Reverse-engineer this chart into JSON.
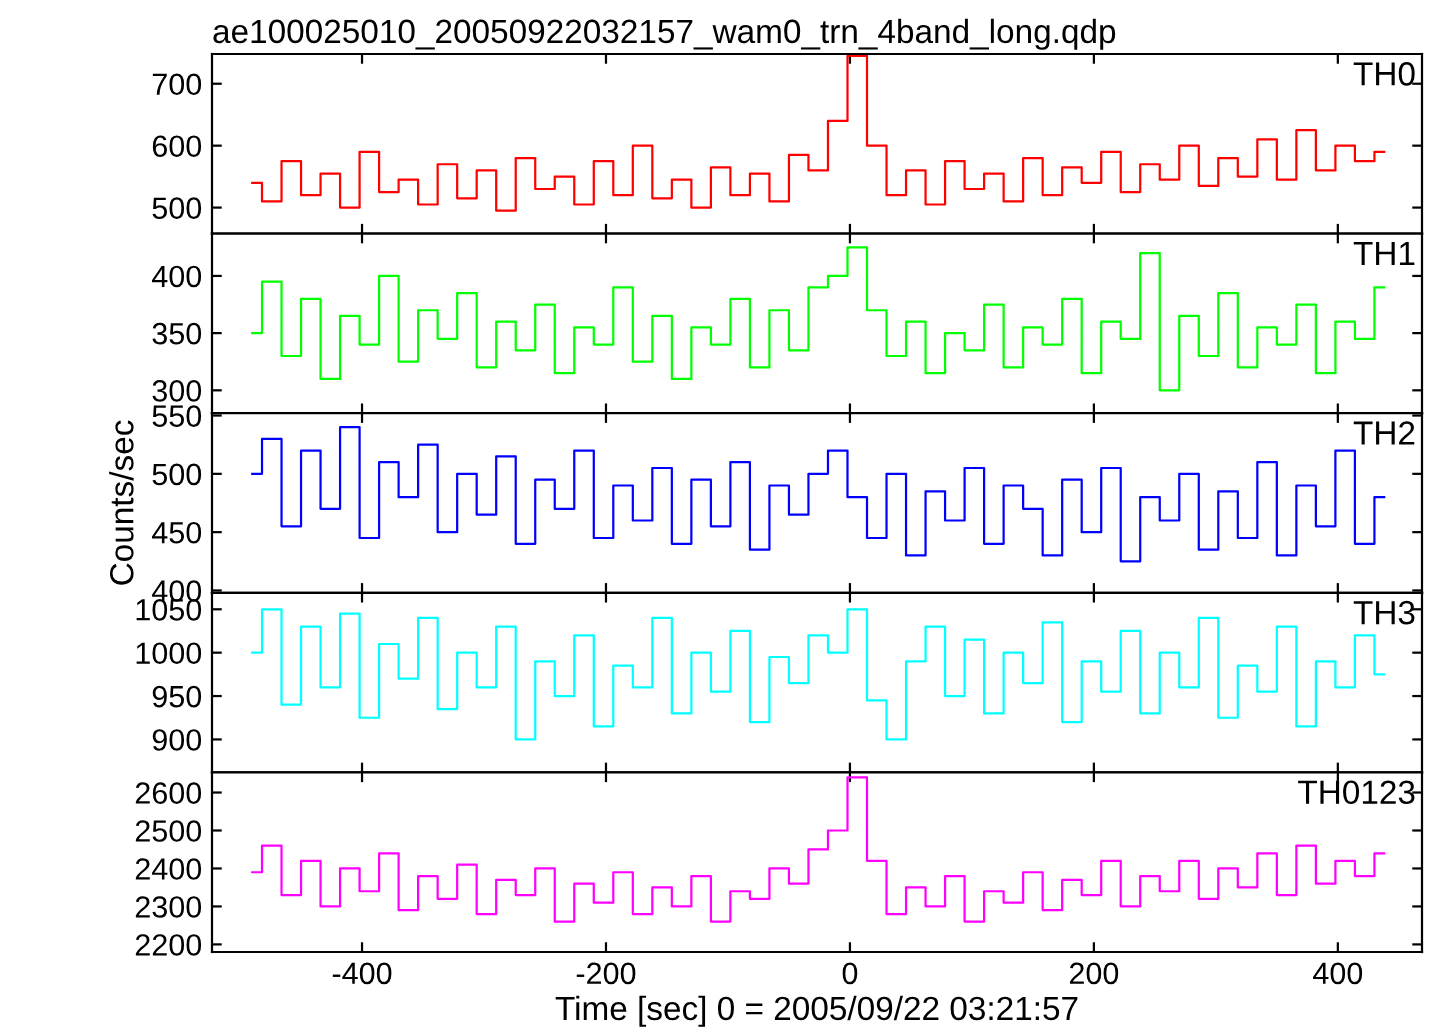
{
  "chart_data": [
    {
      "type": "step",
      "title": "ae100025010_20050922032157_wam0_trn_4band_long.qdp",
      "xlim": [
        -523,
        469
      ],
      "xticks": [
        -400,
        -200,
        0,
        200,
        400
      ],
      "ylim": [
        458,
        748
      ],
      "yticks": [
        500,
        600,
        700
      ],
      "tick_labels": "y",
      "x": [
        -490,
        -474,
        -458,
        -442,
        -426,
        -410,
        -394,
        -378,
        -362,
        -346,
        -330,
        -314,
        -298,
        -282,
        -266,
        -250,
        -234,
        -218,
        -202,
        -186,
        -170,
        -154,
        -138,
        -122,
        -106,
        -90,
        -74,
        -58,
        -42,
        -26,
        -10,
        6,
        22,
        38,
        54,
        70,
        86,
        102,
        118,
        134,
        150,
        166,
        182,
        198,
        214,
        230,
        246,
        262,
        278,
        294,
        310,
        326,
        342,
        358,
        374,
        390,
        406,
        422,
        438
      ],
      "series": [
        {
          "name": "TH0",
          "color": "#ff0000",
          "values": [
            540,
            510,
            575,
            520,
            555,
            500,
            590,
            525,
            545,
            505,
            570,
            515,
            560,
            495,
            580,
            530,
            550,
            505,
            575,
            520,
            600,
            515,
            545,
            500,
            565,
            520,
            555,
            510,
            585,
            560,
            640,
            745,
            600,
            520,
            560,
            505,
            575,
            530,
            555,
            510,
            580,
            520,
            565,
            540,
            590,
            525,
            570,
            545,
            600,
            535,
            580,
            550,
            610,
            545,
            625,
            560,
            600,
            575,
            590
          ]
        }
      ]
    },
    {
      "type": "step",
      "xlim": [
        -523,
        469
      ],
      "xticks": [
        -400,
        -200,
        0,
        200,
        400
      ],
      "ylim": [
        280,
        437
      ],
      "yticks": [
        300,
        350,
        400
      ],
      "tick_labels": "y",
      "x": [
        -490,
        -474,
        -458,
        -442,
        -426,
        -410,
        -394,
        -378,
        -362,
        -346,
        -330,
        -314,
        -298,
        -282,
        -266,
        -250,
        -234,
        -218,
        -202,
        -186,
        -170,
        -154,
        -138,
        -122,
        -106,
        -90,
        -74,
        -58,
        -42,
        -26,
        -10,
        6,
        22,
        38,
        54,
        70,
        86,
        102,
        118,
        134,
        150,
        166,
        182,
        198,
        214,
        230,
        246,
        262,
        278,
        294,
        310,
        326,
        342,
        358,
        374,
        390,
        406,
        422,
        438
      ],
      "series": [
        {
          "name": "TH1",
          "color": "#00ff00",
          "values": [
            350,
            395,
            330,
            380,
            310,
            365,
            340,
            400,
            325,
            370,
            345,
            385,
            320,
            360,
            335,
            375,
            315,
            355,
            340,
            390,
            325,
            365,
            310,
            355,
            340,
            380,
            320,
            370,
            335,
            390,
            400,
            425,
            370,
            330,
            360,
            315,
            350,
            335,
            375,
            320,
            355,
            340,
            380,
            315,
            360,
            345,
            420,
            300,
            365,
            330,
            385,
            320,
            355,
            340,
            375,
            315,
            360,
            345,
            390
          ]
        }
      ]
    },
    {
      "type": "step",
      "xlim": [
        -523,
        469
      ],
      "xticks": [
        -400,
        -200,
        0,
        200,
        400
      ],
      "ylim": [
        398,
        552
      ],
      "yticks": [
        400,
        450,
        500,
        550
      ],
      "tick_labels": "y",
      "ylabel": "Counts/sec",
      "x": [
        -490,
        -474,
        -458,
        -442,
        -426,
        -410,
        -394,
        -378,
        -362,
        -346,
        -330,
        -314,
        -298,
        -282,
        -266,
        -250,
        -234,
        -218,
        -202,
        -186,
        -170,
        -154,
        -138,
        -122,
        -106,
        -90,
        -74,
        -58,
        -42,
        -26,
        -10,
        6,
        22,
        38,
        54,
        70,
        86,
        102,
        118,
        134,
        150,
        166,
        182,
        198,
        214,
        230,
        246,
        262,
        278,
        294,
        310,
        326,
        342,
        358,
        374,
        390,
        406,
        422,
        438
      ],
      "series": [
        {
          "name": "TH2",
          "color": "#0000ff",
          "values": [
            500,
            530,
            455,
            520,
            470,
            540,
            445,
            510,
            480,
            525,
            450,
            500,
            465,
            515,
            440,
            495,
            470,
            520,
            445,
            490,
            460,
            505,
            440,
            495,
            455,
            510,
            435,
            490,
            465,
            500,
            520,
            480,
            445,
            500,
            430,
            485,
            460,
            505,
            440,
            490,
            470,
            430,
            495,
            450,
            505,
            425,
            480,
            460,
            500,
            435,
            485,
            445,
            510,
            430,
            490,
            455,
            520,
            440,
            480
          ]
        }
      ]
    },
    {
      "type": "step",
      "xlim": [
        -523,
        469
      ],
      "xticks": [
        -400,
        -200,
        0,
        200,
        400
      ],
      "ylim": [
        862,
        1069
      ],
      "yticks": [
        900,
        950,
        1000,
        1050
      ],
      "tick_labels": "y",
      "x": [
        -490,
        -474,
        -458,
        -442,
        -426,
        -410,
        -394,
        -378,
        -362,
        -346,
        -330,
        -314,
        -298,
        -282,
        -266,
        -250,
        -234,
        -218,
        -202,
        -186,
        -170,
        -154,
        -138,
        -122,
        -106,
        -90,
        -74,
        -58,
        -42,
        -26,
        -10,
        6,
        22,
        38,
        54,
        70,
        86,
        102,
        118,
        134,
        150,
        166,
        182,
        198,
        214,
        230,
        246,
        262,
        278,
        294,
        310,
        326,
        342,
        358,
        374,
        390,
        406,
        422,
        438
      ],
      "series": [
        {
          "name": "TH3",
          "color": "#00ffff",
          "values": [
            1000,
            1050,
            940,
            1030,
            960,
            1045,
            925,
            1010,
            970,
            1040,
            935,
            1000,
            960,
            1030,
            900,
            990,
            950,
            1020,
            915,
            985,
            960,
            1040,
            930,
            1000,
            955,
            1025,
            920,
            995,
            965,
            1020,
            1000,
            1050,
            945,
            900,
            990,
            1030,
            950,
            1015,
            930,
            1000,
            965,
            1035,
            920,
            990,
            955,
            1025,
            930,
            1000,
            960,
            1040,
            925,
            985,
            955,
            1030,
            915,
            990,
            960,
            1020,
            975
          ]
        }
      ]
    },
    {
      "type": "step",
      "xlim": [
        -523,
        469
      ],
      "xticks": [
        -400,
        -200,
        0,
        200,
        400
      ],
      "ylim": [
        2180,
        2653
      ],
      "yticks": [
        2200,
        2300,
        2400,
        2500,
        2600
      ],
      "xlabel": "Time [sec] 0 = 2005/09/22 03:21:57",
      "x": [
        -490,
        -474,
        -458,
        -442,
        -426,
        -410,
        -394,
        -378,
        -362,
        -346,
        -330,
        -314,
        -298,
        -282,
        -266,
        -250,
        -234,
        -218,
        -202,
        -186,
        -170,
        -154,
        -138,
        -122,
        -106,
        -90,
        -74,
        -58,
        -42,
        -26,
        -10,
        6,
        22,
        38,
        54,
        70,
        86,
        102,
        118,
        134,
        150,
        166,
        182,
        198,
        214,
        230,
        246,
        262,
        278,
        294,
        310,
        326,
        342,
        358,
        374,
        390,
        406,
        422,
        438
      ],
      "series": [
        {
          "name": "TH0123",
          "color": "#ff00ff",
          "values": [
            2390,
            2460,
            2330,
            2420,
            2300,
            2400,
            2340,
            2440,
            2290,
            2380,
            2320,
            2410,
            2280,
            2370,
            2330,
            2400,
            2260,
            2360,
            2310,
            2390,
            2280,
            2350,
            2300,
            2380,
            2260,
            2340,
            2320,
            2400,
            2360,
            2450,
            2500,
            2640,
            2420,
            2280,
            2350,
            2300,
            2380,
            2260,
            2340,
            2310,
            2390,
            2290,
            2370,
            2330,
            2420,
            2300,
            2380,
            2340,
            2420,
            2320,
            2400,
            2350,
            2440,
            2330,
            2460,
            2360,
            2420,
            2380,
            2440
          ]
        }
      ]
    }
  ]
}
